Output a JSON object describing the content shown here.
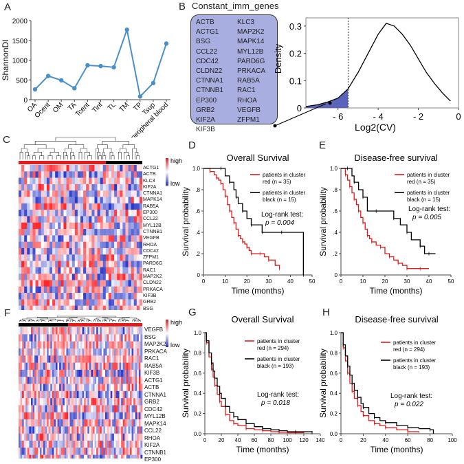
{
  "panels": {
    "A": "A",
    "B": "B",
    "C": "C",
    "D": "D",
    "E": "E",
    "F": "F",
    "G": "G",
    "H": "H"
  },
  "panelB": {
    "title": "Constant_imm_genes",
    "genes_col1": [
      "ACTB",
      "ACTG1",
      "BSG",
      "CCL22",
      "CDC42",
      "CLDN22",
      "CTNNA1",
      "CTNNB1",
      "EP300",
      "GRB2",
      "KIF2A",
      "KIF3B"
    ],
    "genes_col2": [
      "KLC3",
      "MAP2K2",
      "MAPK14",
      "MYL12B",
      "PARD6G",
      "PRKACA",
      "RAB5A",
      "RAC1",
      "RHOA",
      "VEGFB",
      "ZFPM1"
    ]
  },
  "heatmapC": {
    "genes": [
      "ACTG1",
      "ACTB",
      "KLC3",
      "KIF2A",
      "CTNNA1",
      "MAPK14",
      "RAB5A",
      "EP300",
      "CCL22",
      "MYL12B",
      "CTNNB1",
      "VEGFB",
      "RHOA",
      "CDC42",
      "ZFPM1",
      "PARD6G",
      "RAC1",
      "MAP2K2",
      "CLDN22",
      "PRKACA",
      "KIF3B",
      "GRB2",
      "BSG"
    ],
    "legend_high": "high",
    "legend_low": "low",
    "red_fraction": 0.7
  },
  "heatmapF": {
    "genes": [
      "VEGFB",
      "BSG",
      "MAP2K2",
      "PRKACA",
      "RAC1",
      "RAB5A",
      "KIF3B",
      "ACTG1",
      "ACTB",
      "CTNNA1",
      "GRB2",
      "CDC42",
      "MYL12B",
      "MAPK14",
      "CCL22",
      "RHOA",
      "KIF2A",
      "CTNNB1",
      "EP300"
    ],
    "legend_high": "high",
    "legend_low": "low",
    "black_fraction": 0.4
  },
  "colors": {
    "line_blue": "#4a90c8",
    "red": "#e41a1c",
    "black": "#000000",
    "box_fill": "#a9aee0",
    "density_fill": "#5a64b8"
  },
  "chart_data": [
    {
      "id": "A",
      "type": "line",
      "title": "",
      "xlabel": "",
      "ylabel": "ShannonDI",
      "categories": [
        "OA",
        "Ocent",
        "OM",
        "TA",
        "Tcent",
        "Tinf",
        "TL",
        "TM",
        "TP",
        "Tsup",
        "peripheral blood"
      ],
      "values": [
        260,
        600,
        490,
        290,
        870,
        850,
        820,
        1770,
        80,
        420,
        1420
      ],
      "ylim": [
        0,
        2000
      ],
      "yticks": [
        0,
        500,
        1000,
        1500,
        2000
      ],
      "ytick_labels": [
        "0",
        "500",
        "1000",
        "1500",
        "2000"
      ]
    },
    {
      "id": "B",
      "type": "area",
      "title": "",
      "xlabel": "Log2(CV)",
      "ylabel": "Density",
      "x": [
        -7.6,
        -7,
        -6.5,
        -6,
        -5.5,
        -5,
        -4.5,
        -4,
        -3.6,
        -3.2,
        -2.8,
        -2.4,
        -2,
        -1.6,
        -1.2,
        -0.8,
        -0.4
      ],
      "y": [
        0.005,
        0.012,
        0.022,
        0.036,
        0.07,
        0.13,
        0.2,
        0.27,
        0.31,
        0.3,
        0.27,
        0.23,
        0.18,
        0.13,
        0.09,
        0.055,
        0.025
      ],
      "xlim": [
        -7.6,
        0
      ],
      "ylim": [
        0,
        0.33
      ],
      "xticks": [
        -6,
        -4,
        -2,
        0
      ],
      "xtick_labels": [
        "- 6",
        "- 4",
        "- 2",
        "0"
      ],
      "yticks": [
        0,
        0.1,
        0.2,
        0.3
      ],
      "ytick_labels": [
        "0",
        "0.1",
        "0.2",
        "0.3"
      ],
      "threshold_x": -5.5,
      "marker": {
        "x": -6.4,
        "y": 0.018
      }
    },
    {
      "id": "D",
      "type": "line",
      "title": "Overall Survival",
      "xlabel": "Time (months)",
      "ylabel": "Survival probability",
      "xlim": [
        0,
        50
      ],
      "ylim": [
        0,
        1
      ],
      "xticks": [
        0,
        10,
        20,
        30,
        40,
        50
      ],
      "yticks": [
        0,
        0.2,
        0.4,
        0.6,
        0.8,
        1.0
      ],
      "ytick_labels": [
        "0",
        ".2",
        ".4",
        ".6",
        ".8",
        "1.0"
      ],
      "legend": [
        "patients in cluster red (n = 35)",
        "patients in cluster black (n = 15)"
      ],
      "legend_lines": [
        [
          "patients in cluster",
          "red (n = 35)"
        ],
        [
          "patients in cluster",
          "black (n = 15)"
        ]
      ],
      "annotation": [
        "Log-rank test:",
        "p = 0.004"
      ],
      "series": [
        {
          "name": "red",
          "color": "#e41a1c",
          "x": [
            0,
            3,
            5,
            6,
            7,
            8,
            9,
            10,
            11,
            12,
            13,
            14,
            15,
            16,
            17,
            18,
            19,
            20,
            21,
            22,
            24,
            26,
            28,
            30,
            33,
            35
          ],
          "y": [
            1,
            0.97,
            0.94,
            0.91,
            0.89,
            0.86,
            0.8,
            0.74,
            0.66,
            0.6,
            0.54,
            0.49,
            0.43,
            0.37,
            0.34,
            0.31,
            0.29,
            0.26,
            0.23,
            0.2,
            0.2,
            0.2,
            0.17,
            0.14,
            0.09,
            0.06
          ]
        },
        {
          "name": "black",
          "color": "#000000",
          "x": [
            0,
            8,
            10,
            12,
            14,
            15,
            16,
            18,
            20,
            22,
            24,
            27,
            30,
            36,
            41,
            46
          ],
          "y": [
            1,
            1,
            0.93,
            0.87,
            0.8,
            0.73,
            0.67,
            0.6,
            0.53,
            0.47,
            0.47,
            0.4,
            0.4,
            0.4,
            0.4,
            0
          ]
        }
      ]
    },
    {
      "id": "E",
      "type": "line",
      "title": "Disease-free survival",
      "xlabel": "Time (months)",
      "ylabel": "Survival probability",
      "xlim": [
        0,
        50
      ],
      "ylim": [
        0,
        1
      ],
      "xticks": [
        0,
        10,
        20,
        30,
        40,
        50
      ],
      "yticks": [
        0,
        0.2,
        0.4,
        0.6,
        0.8,
        1.0
      ],
      "ytick_labels": [
        "0",
        ".2",
        ".4",
        ".6",
        ".8",
        "1.0"
      ],
      "legend": [
        "patients in cluster red (n = 35)",
        "patients in cluster black (n = 15)"
      ],
      "legend_lines": [
        [
          "patients in cluster",
          "red (n = 35)"
        ],
        [
          "patients in cluster",
          "black (n = 15)"
        ]
      ],
      "annotation": [
        "Log-rank test:",
        "p = 0.005"
      ],
      "series": [
        {
          "name": "red",
          "color": "#e41a1c",
          "x": [
            0,
            2,
            3,
            4,
            5,
            6,
            7,
            8,
            9,
            10,
            11,
            12,
            13,
            14,
            16,
            18,
            20,
            22,
            24,
            26,
            28,
            30,
            33,
            36,
            40
          ],
          "y": [
            1,
            0.94,
            0.89,
            0.83,
            0.77,
            0.71,
            0.66,
            0.6,
            0.54,
            0.49,
            0.43,
            0.37,
            0.34,
            0.31,
            0.28,
            0.26,
            0.2,
            0.17,
            0.14,
            0.11,
            0.09,
            0.06,
            0.06,
            0.06,
            0.06
          ]
        },
        {
          "name": "black",
          "color": "#000000",
          "x": [
            0,
            3,
            5,
            6,
            8,
            10,
            12,
            16,
            20,
            24,
            27,
            30,
            32,
            36,
            38,
            40,
            43
          ],
          "y": [
            1,
            1,
            0.93,
            0.87,
            0.8,
            0.73,
            0.6,
            0.6,
            0.6,
            0.53,
            0.47,
            0.4,
            0.33,
            0.27,
            0.2,
            0.2,
            0.2
          ]
        }
      ]
    },
    {
      "id": "G",
      "type": "line",
      "title": "Overall Survival",
      "xlabel": "Time (months)",
      "ylabel": "Survival probability",
      "xlim": [
        0,
        140
      ],
      "ylim": [
        0,
        1
      ],
      "xticks": [
        0,
        20,
        40,
        60,
        80,
        100,
        120,
        140
      ],
      "yticks": [
        0,
        0.2,
        0.4,
        0.6,
        0.8,
        1.0
      ],
      "ytick_labels": [
        "0.0",
        "0.2",
        "0.4",
        "0.6",
        "0.8",
        "1.0"
      ],
      "legend": [
        "patients in cluster red (n = 294)",
        "patients in cluster black (n = 193)"
      ],
      "legend_lines": [
        [
          "patients in cluster",
          "red (n = 294)"
        ],
        [
          "patients in cluster",
          "black (n = 193)"
        ]
      ],
      "annotation": [
        "Log-rank test:",
        "p = 0.018"
      ],
      "series": [
        {
          "name": "red",
          "color": "#e41a1c",
          "x": [
            0,
            2,
            5,
            8,
            10,
            12,
            15,
            18,
            20,
            25,
            30,
            35,
            40,
            50,
            60,
            70,
            80,
            90,
            100,
            110,
            120
          ],
          "y": [
            1,
            0.9,
            0.76,
            0.64,
            0.56,
            0.48,
            0.39,
            0.32,
            0.27,
            0.19,
            0.13,
            0.1,
            0.08,
            0.05,
            0.04,
            0.03,
            0.02,
            0.015,
            0.01,
            0.01,
            0.005
          ]
        },
        {
          "name": "black",
          "color": "#000000",
          "x": [
            0,
            2,
            5,
            8,
            10,
            12,
            15,
            18,
            20,
            25,
            30,
            35,
            40,
            50,
            60,
            70,
            80,
            90,
            100,
            110,
            125,
            130
          ],
          "y": [
            1,
            0.92,
            0.8,
            0.7,
            0.62,
            0.55,
            0.47,
            0.4,
            0.35,
            0.27,
            0.21,
            0.17,
            0.14,
            0.1,
            0.07,
            0.05,
            0.04,
            0.03,
            0.02,
            0.02,
            0.02,
            0.01
          ]
        }
      ]
    },
    {
      "id": "H",
      "type": "line",
      "title": "Disease-free survival",
      "xlabel": "Time (months)",
      "ylabel": "Survival probability",
      "xlim": [
        0,
        100
      ],
      "ylim": [
        0,
        1
      ],
      "xticks": [
        0,
        20,
        40,
        60,
        80,
        100
      ],
      "yticks": [
        0,
        0.2,
        0.4,
        0.6,
        0.8,
        1.0
      ],
      "ytick_labels": [
        "0.0",
        "0.2",
        "0.4",
        "0.6",
        "0.8",
        "1.0"
      ],
      "legend": [
        "patients in cluster red (n = 294)",
        "patients in cluster black (n = 193)"
      ],
      "legend_lines": [
        [
          "patients in cluster",
          "red (n = 294)"
        ],
        [
          "patients in cluster",
          "black (n = 193)"
        ]
      ],
      "annotation": [
        "Log-rank test:",
        "p = 0.022"
      ],
      "series": [
        {
          "name": "red",
          "color": "#e41a1c",
          "x": [
            0,
            2,
            4,
            6,
            8,
            10,
            12,
            15,
            18,
            20,
            25,
            30,
            35,
            40,
            50,
            60,
            70
          ],
          "y": [
            1,
            0.85,
            0.72,
            0.6,
            0.5,
            0.42,
            0.35,
            0.28,
            0.22,
            0.18,
            0.13,
            0.1,
            0.08,
            0.06,
            0.04,
            0.02,
            0.01
          ]
        },
        {
          "name": "black",
          "color": "#000000",
          "x": [
            0,
            2,
            4,
            6,
            8,
            10,
            12,
            15,
            18,
            20,
            25,
            30,
            35,
            40,
            50,
            60,
            70,
            80,
            83
          ],
          "y": [
            1,
            0.88,
            0.77,
            0.67,
            0.58,
            0.5,
            0.43,
            0.36,
            0.3,
            0.26,
            0.2,
            0.16,
            0.13,
            0.11,
            0.08,
            0.06,
            0.05,
            0.04,
            0.0
          ]
        }
      ]
    }
  ]
}
